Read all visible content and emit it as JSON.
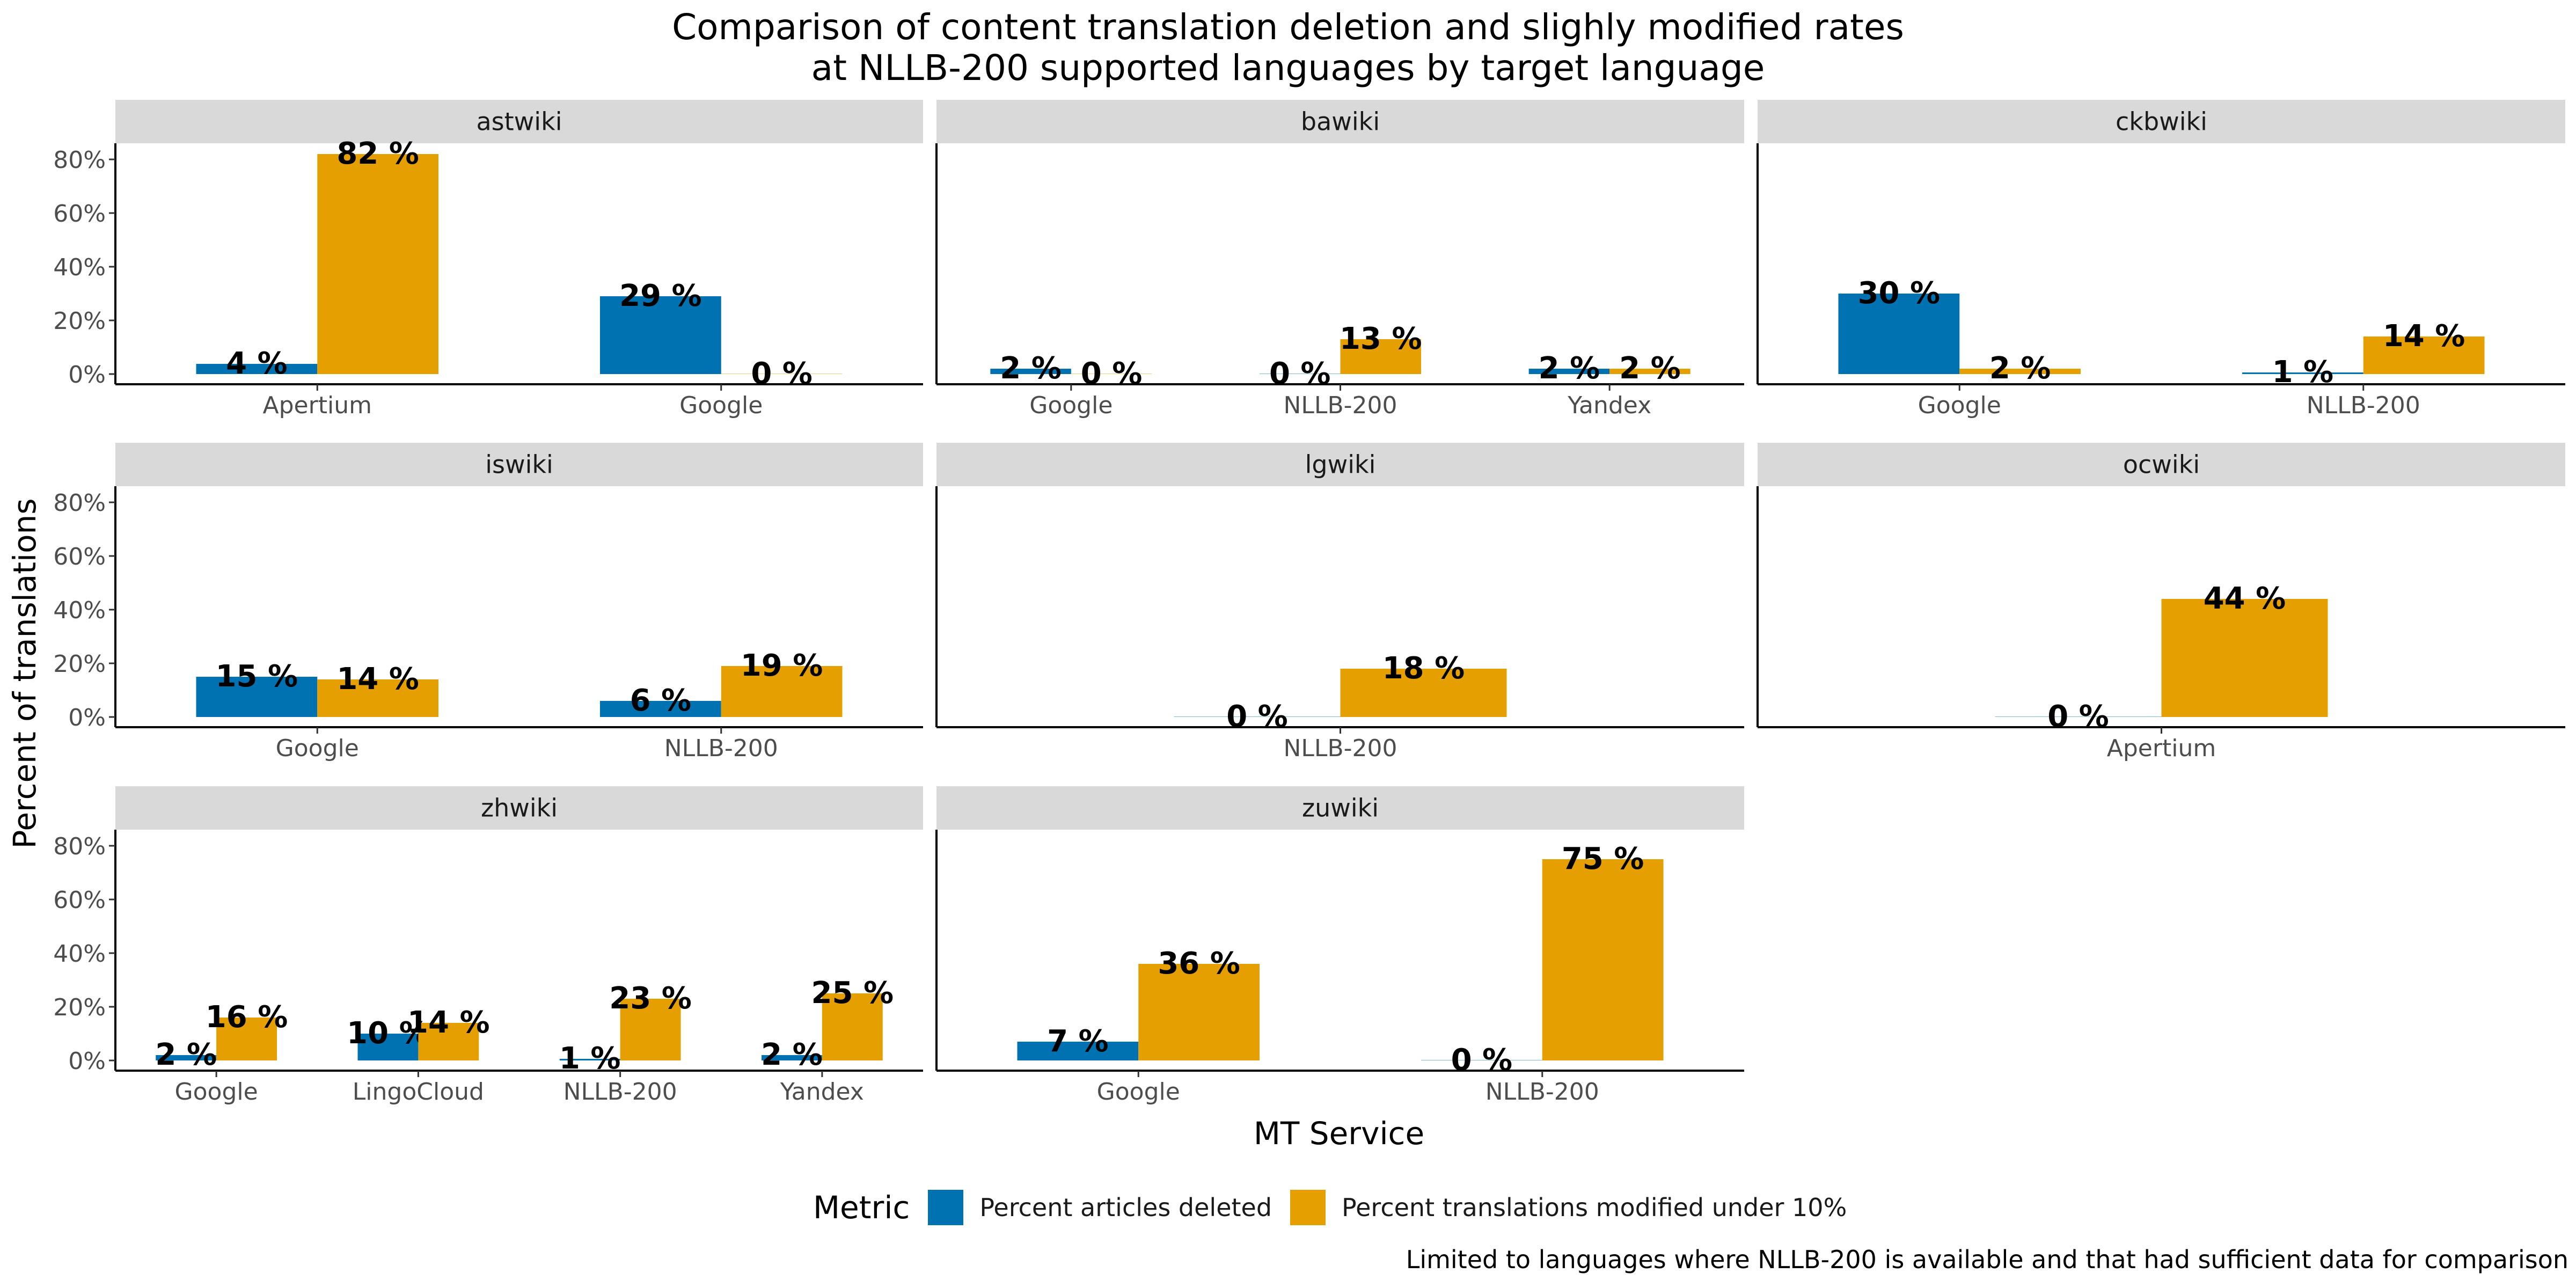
{
  "title_lines": [
    "Comparison of content translation deletion and slighly modified rates",
    "at NLLB-200 supported languages by target language"
  ],
  "y_axis_title": "Percent of translations",
  "x_axis_title": "MT Service",
  "legend": {
    "title": "Metric",
    "entries": [
      {
        "label": "Percent articles deleted",
        "color": "#0072B2"
      },
      {
        "label": "Percent translations modified under 10%",
        "color": "#E69F00"
      }
    ]
  },
  "caption": "Limited to languages where NLLB-200 is available and that had sufficient data for comparison",
  "chart_data": {
    "type": "bar",
    "layout": "faceted grouped bar, 3 columns, shared y axis",
    "series_names": [
      "Percent articles deleted",
      "Percent translations modified under 10%"
    ],
    "series_colors": [
      "#0072B2",
      "#E69F00"
    ],
    "ylim": [
      0,
      86
    ],
    "yticks": [
      0,
      20,
      40,
      60,
      80
    ],
    "ytick_labels": [
      "0%",
      "20%",
      "40%",
      "60%",
      "80%"
    ],
    "strip_color": "#D9D9D9",
    "facets": [
      {
        "name": "astwiki",
        "categories": [
          "Apertium",
          "Google"
        ],
        "bars": [
          {
            "category": "Apertium",
            "series": 0,
            "value": 3.8,
            "label": "4 %"
          },
          {
            "category": "Apertium",
            "series": 1,
            "value": 82,
            "label": "82 %"
          },
          {
            "category": "Google",
            "series": 0,
            "value": 29,
            "label": "29 %"
          },
          {
            "category": "Google",
            "series": 1,
            "value": 0,
            "label": "0 %"
          }
        ]
      },
      {
        "name": "bawiki",
        "categories": [
          "Google",
          "NLLB-200",
          "Yandex"
        ],
        "bars": [
          {
            "category": "Google",
            "series": 0,
            "value": 2,
            "label": "2 %"
          },
          {
            "category": "Google",
            "series": 1,
            "value": 0,
            "label": "0 %"
          },
          {
            "category": "NLLB-200",
            "series": 0,
            "value": 0,
            "label": "0 %"
          },
          {
            "category": "NLLB-200",
            "series": 1,
            "value": 13,
            "label": "13 %"
          },
          {
            "category": "Yandex",
            "series": 0,
            "value": 2,
            "label": "2 %"
          },
          {
            "category": "Yandex",
            "series": 1,
            "value": 2,
            "label": "2 %"
          }
        ]
      },
      {
        "name": "ckbwiki",
        "categories": [
          "Google",
          "NLLB-200"
        ],
        "bars": [
          {
            "category": "Google",
            "series": 0,
            "value": 30,
            "label": "30 %"
          },
          {
            "category": "Google",
            "series": 1,
            "value": 2,
            "label": "2 %"
          },
          {
            "category": "NLLB-200",
            "series": 0,
            "value": 0.6,
            "label": "1 %"
          },
          {
            "category": "NLLB-200",
            "series": 1,
            "value": 14,
            "label": "14 %"
          }
        ]
      },
      {
        "name": "iswiki",
        "categories": [
          "Google",
          "NLLB-200"
        ],
        "bars": [
          {
            "category": "Google",
            "series": 0,
            "value": 15,
            "label": "15 %"
          },
          {
            "category": "Google",
            "series": 1,
            "value": 14,
            "label": "14 %"
          },
          {
            "category": "NLLB-200",
            "series": 0,
            "value": 6,
            "label": "6 %"
          },
          {
            "category": "NLLB-200",
            "series": 1,
            "value": 19,
            "label": "19 %"
          }
        ]
      },
      {
        "name": "lgwiki",
        "categories": [
          "NLLB-200"
        ],
        "bars": [
          {
            "category": "NLLB-200",
            "series": 0,
            "value": 0,
            "label": "0 %"
          },
          {
            "category": "NLLB-200",
            "series": 1,
            "value": 18,
            "label": "18 %"
          }
        ]
      },
      {
        "name": "ocwiki",
        "categories": [
          "Apertium"
        ],
        "bars": [
          {
            "category": "Apertium",
            "series": 0,
            "value": 0,
            "label": "0 %"
          },
          {
            "category": "Apertium",
            "series": 1,
            "value": 44,
            "label": "44 %"
          }
        ]
      },
      {
        "name": "zhwiki",
        "categories": [
          "Google",
          "LingoCloud",
          "NLLB-200",
          "Yandex"
        ],
        "bars": [
          {
            "category": "Google",
            "series": 0,
            "value": 2,
            "label": "2 %"
          },
          {
            "category": "Google",
            "series": 1,
            "value": 16,
            "label": "16 %"
          },
          {
            "category": "LingoCloud",
            "series": 0,
            "value": 10,
            "label": "10 %"
          },
          {
            "category": "LingoCloud",
            "series": 1,
            "value": 14,
            "label": "14 %"
          },
          {
            "category": "NLLB-200",
            "series": 0,
            "value": 0.6,
            "label": "1 %"
          },
          {
            "category": "NLLB-200",
            "series": 1,
            "value": 23,
            "label": "23 %"
          },
          {
            "category": "Yandex",
            "series": 0,
            "value": 2,
            "label": "2 %"
          },
          {
            "category": "Yandex",
            "series": 1,
            "value": 25,
            "label": "25 %"
          }
        ]
      },
      {
        "name": "zuwiki",
        "categories": [
          "Google",
          "NLLB-200"
        ],
        "bars": [
          {
            "category": "Google",
            "series": 0,
            "value": 7,
            "label": "7 %"
          },
          {
            "category": "Google",
            "series": 1,
            "value": 36,
            "label": "36 %"
          },
          {
            "category": "NLLB-200",
            "series": 0,
            "value": 0,
            "label": "0 %"
          },
          {
            "category": "NLLB-200",
            "series": 1,
            "value": 75,
            "label": "75 %"
          }
        ]
      }
    ]
  }
}
